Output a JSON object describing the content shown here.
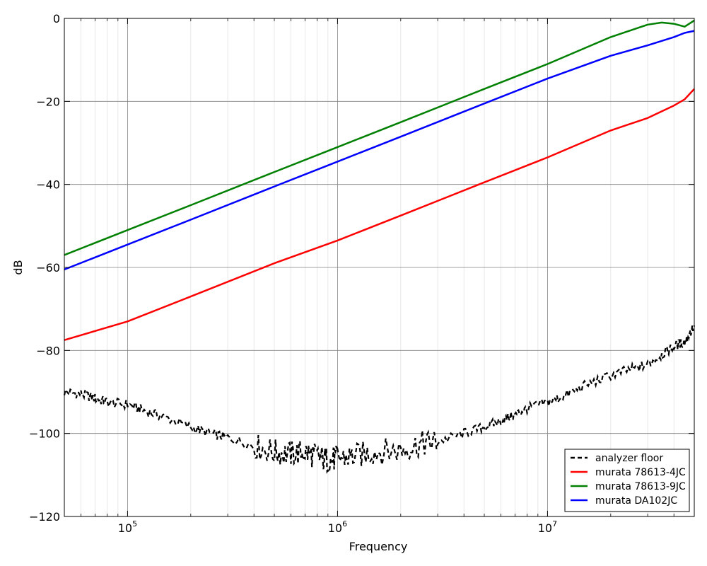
{
  "chart_data": {
    "type": "line",
    "xlabel": "Frequency",
    "ylabel": "dB",
    "xscale": "log",
    "xlim": [
      50000,
      50000000
    ],
    "ylim": [
      -120,
      0
    ],
    "grid": true,
    "x_ticks": [
      {
        "value": 100000,
        "base": "10",
        "exp": "5"
      },
      {
        "value": 1000000,
        "base": "10",
        "exp": "6"
      },
      {
        "value": 10000000,
        "base": "10",
        "exp": "7"
      }
    ],
    "y_ticks": [
      {
        "value": 0,
        "label": "0"
      },
      {
        "value": -20,
        "label": "−20"
      },
      {
        "value": -40,
        "label": "−40"
      },
      {
        "value": -60,
        "label": "−60"
      },
      {
        "value": -80,
        "label": "−80"
      },
      {
        "value": -100,
        "label": "−100"
      },
      {
        "value": -120,
        "label": "−120"
      }
    ],
    "legend_position": "lower-right",
    "series": [
      {
        "name": "analyzer floor",
        "color": "#000000",
        "style": "dashed",
        "x": [
          50000,
          60000,
          70000,
          80000,
          100000,
          120000,
          150000,
          200000,
          250000,
          300000,
          400000,
          500000,
          600000,
          700000,
          800000,
          900000,
          1000000,
          1200000,
          1500000,
          2000000,
          2500000,
          3000000,
          4000000,
          5000000,
          6000000,
          7000000,
          8000000,
          10000000,
          12000000,
          15000000,
          20000000,
          25000000,
          30000000,
          35000000,
          40000000,
          45000000,
          50000000
        ],
        "y": [
          -90,
          -90.5,
          -91.5,
          -92.5,
          -93,
          -94.5,
          -96,
          -98.5,
          -100,
          -101,
          -103,
          -104.5,
          -105,
          -104.5,
          -105.5,
          -106.5,
          -106,
          -105.5,
          -104.5,
          -104,
          -102.5,
          -102,
          -100,
          -98.5,
          -97,
          -95.5,
          -94,
          -92.5,
          -91,
          -88.5,
          -86,
          -84.5,
          -83.5,
          -81,
          -79,
          -78,
          -74
        ]
      },
      {
        "name": "murata 78613-4JC",
        "color": "#ff0000",
        "style": "solid",
        "x": [
          50000,
          100000,
          200000,
          500000,
          1000000,
          2000000,
          5000000,
          10000000,
          20000000,
          30000000,
          40000000,
          45000000,
          50000000
        ],
        "y": [
          -77.5,
          -73,
          -67,
          -59,
          -53.5,
          -47.5,
          -39.5,
          -33.5,
          -27,
          -24,
          -21,
          -19.5,
          -17
        ]
      },
      {
        "name": "murata 78613-9JC",
        "color": "#008000",
        "style": "solid",
        "x": [
          50000,
          100000,
          200000,
          500000,
          1000000,
          2000000,
          5000000,
          10000000,
          20000000,
          30000000,
          35000000,
          40000000,
          45000000,
          50000000
        ],
        "y": [
          -57,
          -51,
          -45,
          -37,
          -31,
          -25,
          -17,
          -11,
          -4.5,
          -1.5,
          -1,
          -1.3,
          -2,
          -0.5
        ]
      },
      {
        "name": "murata DA102JC",
        "color": "#0000ff",
        "style": "solid",
        "x": [
          50000,
          100000,
          200000,
          500000,
          1000000,
          2000000,
          5000000,
          10000000,
          20000000,
          30000000,
          40000000,
          45000000,
          50000000
        ],
        "y": [
          -60.5,
          -54.5,
          -48.5,
          -40.5,
          -34.5,
          -28.5,
          -20.5,
          -14.5,
          -9,
          -6.5,
          -4.5,
          -3.5,
          -3
        ]
      }
    ]
  }
}
